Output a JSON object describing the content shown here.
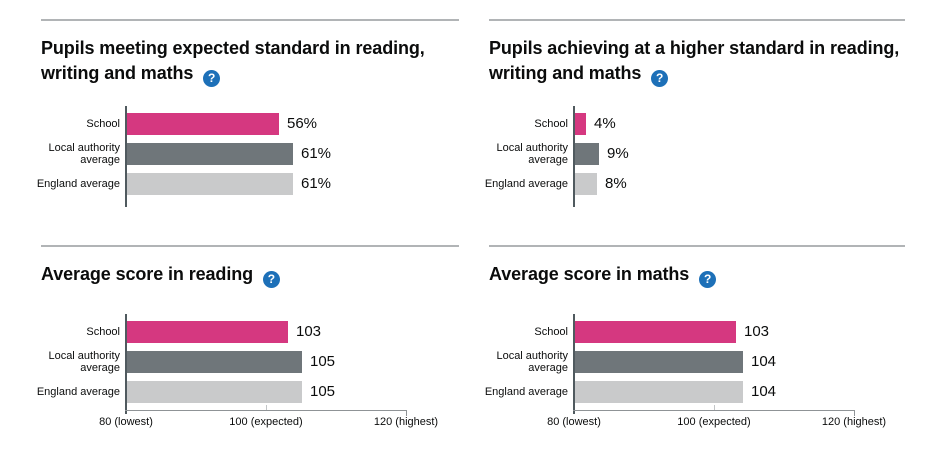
{
  "help_icon_glyph": "?",
  "palette": {
    "school_bar": "#d53880",
    "local_authority_bar": "#6f767a",
    "england_bar": "#c9cacb",
    "help_icon_bg": "#1d70b8",
    "y_axis_line": "#505a5f",
    "x_axis_line": "#8f9396",
    "divider": "#b1b4b6",
    "text": "#0b0c0c"
  },
  "category_label_lines": [
    [
      "School"
    ],
    [
      "Local authority",
      "average"
    ],
    [
      "England average"
    ]
  ],
  "chart_data": [
    {
      "type": "bar",
      "title": "Pupils meeting expected standard in reading, writing and maths",
      "categories": [
        "School",
        "Local authority average",
        "England average"
      ],
      "values": [
        56,
        61,
        61
      ],
      "value_labels": [
        "56%",
        "61%",
        "61%"
      ],
      "xlim": [
        0,
        100
      ],
      "axis_visible": false
    },
    {
      "type": "bar",
      "title": "Pupils achieving at a higher standard in reading, writing and maths",
      "categories": [
        "School",
        "Local authority average",
        "England average"
      ],
      "values": [
        4,
        9,
        8
      ],
      "value_labels": [
        "4%",
        "9%",
        "8%"
      ],
      "xlim": [
        0,
        100
      ],
      "axis_visible": false
    },
    {
      "type": "bar",
      "title": "Average score in reading",
      "categories": [
        "School",
        "Local authority average",
        "England average"
      ],
      "values": [
        103,
        105,
        105
      ],
      "value_labels": [
        "103",
        "105",
        "105"
      ],
      "xlim": [
        80,
        120
      ],
      "axis_visible": true,
      "x_ticks": [
        {
          "value": 80,
          "label": "80 (lowest)"
        },
        {
          "value": 100,
          "label": "100 (expected)"
        },
        {
          "value": 120,
          "label": "120 (highest)"
        }
      ]
    },
    {
      "type": "bar",
      "title": "Average score in maths",
      "categories": [
        "School",
        "Local authority average",
        "England average"
      ],
      "values": [
        103,
        104,
        104
      ],
      "value_labels": [
        "103",
        "104",
        "104"
      ],
      "xlim": [
        80,
        120
      ],
      "axis_visible": true,
      "x_ticks": [
        {
          "value": 80,
          "label": "80 (lowest)"
        },
        {
          "value": 100,
          "label": "100 (expected)"
        },
        {
          "value": 120,
          "label": "120 (highest)"
        }
      ]
    }
  ]
}
